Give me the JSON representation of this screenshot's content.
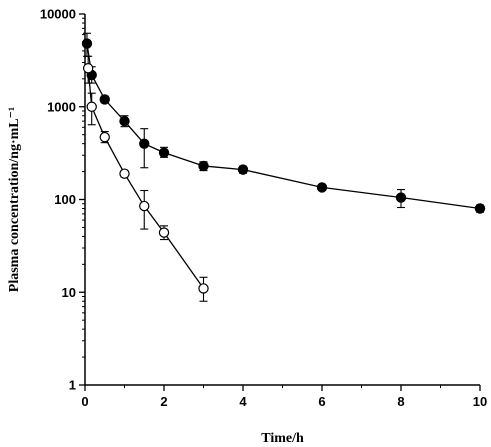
{
  "chart_data": {
    "type": "scatter",
    "title": "",
    "xlabel": "Time/h",
    "ylabel": "Plasma concentration/ng·mL⁻¹",
    "xlim": [
      0,
      10
    ],
    "ylim": [
      1,
      10000
    ],
    "yscale": "log",
    "x_ticks": [
      0,
      2,
      4,
      6,
      8,
      10
    ],
    "x_tick_labels": [
      "0",
      "2",
      "4",
      "6",
      "8",
      "10"
    ],
    "y_ticks": [
      1,
      10,
      100,
      1000,
      10000
    ],
    "y_tick_labels": [
      "1",
      "10",
      "100",
      "1000",
      "10000"
    ],
    "grid": false,
    "legend": "none",
    "series": [
      {
        "marker": "filled-circle",
        "color": "#000000",
        "points": [
          {
            "x": 0.05,
            "y": 4800,
            "err_low": 3500,
            "err_high": 6200
          },
          {
            "x": 0.17,
            "y": 2200,
            "err_low": 1800,
            "err_high": 2700
          },
          {
            "x": 0.5,
            "y": 1200,
            "err_low": 1100,
            "err_high": 1300
          },
          {
            "x": 1.0,
            "y": 700,
            "err_low": 610,
            "err_high": 800
          },
          {
            "x": 1.5,
            "y": 400,
            "err_low": 220,
            "err_high": 580
          },
          {
            "x": 2.0,
            "y": 320,
            "err_low": 285,
            "err_high": 365
          },
          {
            "x": 3.0,
            "y": 230,
            "err_low": 205,
            "err_high": 255
          },
          {
            "x": 4.0,
            "y": 210,
            "err_low": 192,
            "err_high": 228
          },
          {
            "x": 6.0,
            "y": 135,
            "err_low": 127,
            "err_high": 143
          },
          {
            "x": 8.0,
            "y": 105,
            "err_low": 82,
            "err_high": 128
          },
          {
            "x": 10.0,
            "y": 80,
            "err_low": 73,
            "err_high": 87
          }
        ]
      },
      {
        "marker": "open-circle",
        "color": "#000000",
        "points": [
          {
            "x": 0.08,
            "y": 2600,
            "err_low": 1800,
            "err_high": 3500
          },
          {
            "x": 0.17,
            "y": 1000,
            "err_low": 640,
            "err_high": 1400
          },
          {
            "x": 0.5,
            "y": 470,
            "err_low": 410,
            "err_high": 540
          },
          {
            "x": 1.0,
            "y": 190,
            "err_low": 175,
            "err_high": 205
          },
          {
            "x": 1.5,
            "y": 85,
            "err_low": 48,
            "err_high": 125
          },
          {
            "x": 2.0,
            "y": 44,
            "err_low": 37,
            "err_high": 52
          },
          {
            "x": 3.0,
            "y": 11,
            "err_low": 8,
            "err_high": 14.5
          }
        ]
      }
    ]
  }
}
